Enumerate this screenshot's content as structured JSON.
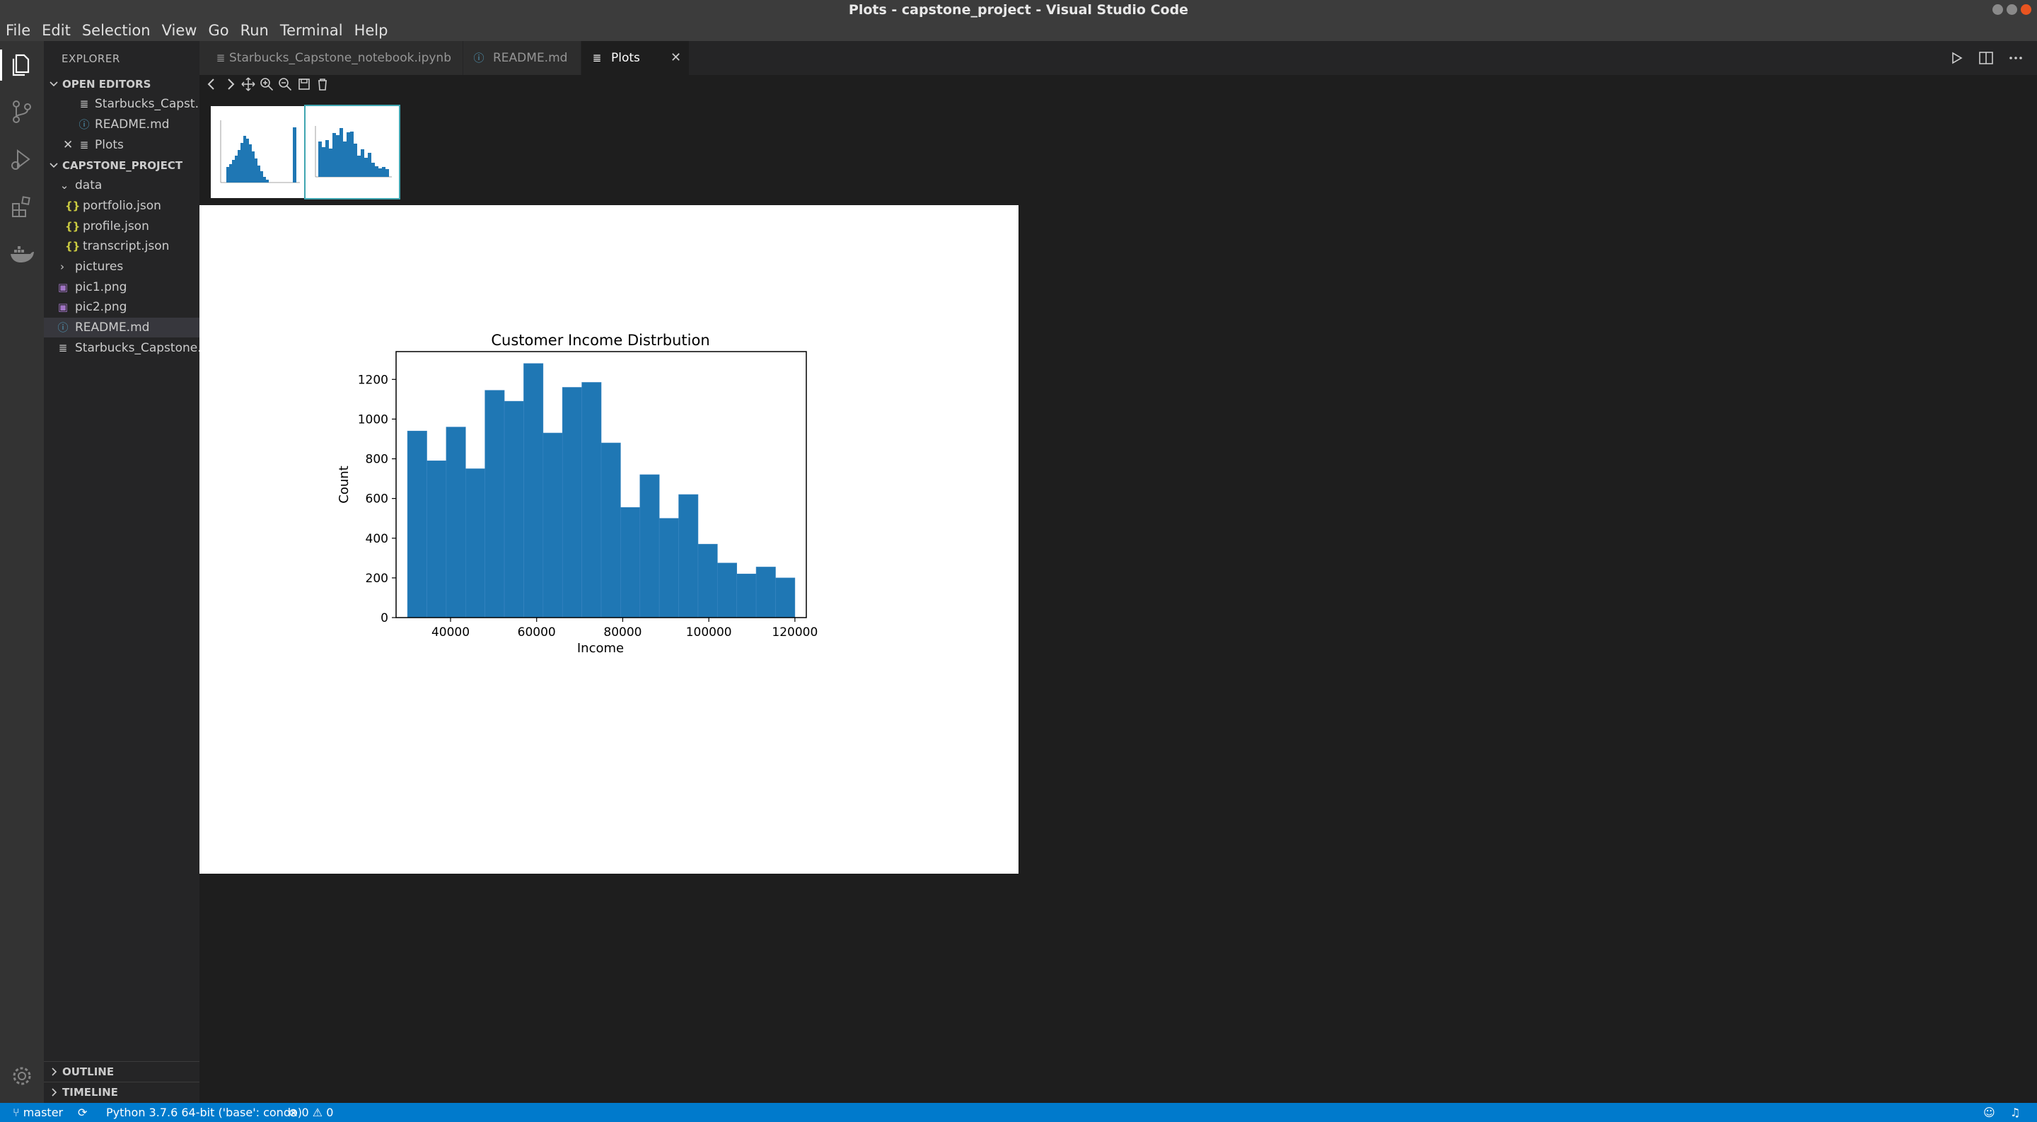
{
  "window": {
    "title": "Plots - capstone_project - Visual Studio Code"
  },
  "menu": [
    "File",
    "Edit",
    "Selection",
    "View",
    "Go",
    "Run",
    "Terminal",
    "Help"
  ],
  "sidebar": {
    "title": "EXPLORER",
    "open_editors": {
      "header": "OPEN EDITORS",
      "items": [
        "Starbucks_Capst...",
        "README.md",
        "Plots"
      ]
    },
    "project": {
      "header": "CAPSTONE_PROJECT",
      "items": [
        "data",
        "portfolio.json",
        "profile.json",
        "transcript.json",
        "pictures",
        "pic1.png",
        "pic2.png",
        "README.md",
        "Starbucks_Capstone..."
      ]
    },
    "outline": "OUTLINE",
    "timeline": "TIMELINE"
  },
  "tabs": [
    "Starbucks_Capstone_notebook.ipynb",
    "README.md",
    "Plots"
  ],
  "status": {
    "branch": "master",
    "python": "Python 3.7.6 64-bit ('base': conda)",
    "errors": "0",
    "warnings": "0"
  },
  "colors": {
    "accent": "#007acc",
    "bar": "#1f77b4",
    "json_icon": "#cbcb41",
    "info_icon": "#519aba",
    "image_icon": "#a074c4"
  },
  "chart_data": {
    "type": "bar",
    "title": "Customer Income Distrbution",
    "xlabel": "Income",
    "ylabel": "Count",
    "xlim": [
      27350,
      122650
    ],
    "ylim": [
      0,
      1340
    ],
    "xticks": [
      40000,
      60000,
      80000,
      100000,
      120000
    ],
    "xtick_labels": [
      "40000",
      "60000",
      "80000",
      "100000",
      "120000"
    ],
    "yticks": [
      0,
      200,
      400,
      600,
      800,
      1000,
      1200
    ],
    "ytick_labels": [
      "0",
      "200",
      "400",
      "600",
      "800",
      "1000",
      "1200"
    ],
    "bin_start": 30000,
    "bin_width": 4500,
    "values": [
      940,
      790,
      960,
      750,
      1145,
      1090,
      1280,
      930,
      1160,
      1185,
      880,
      555,
      720,
      500,
      620,
      370,
      275,
      220,
      255,
      200
    ]
  }
}
